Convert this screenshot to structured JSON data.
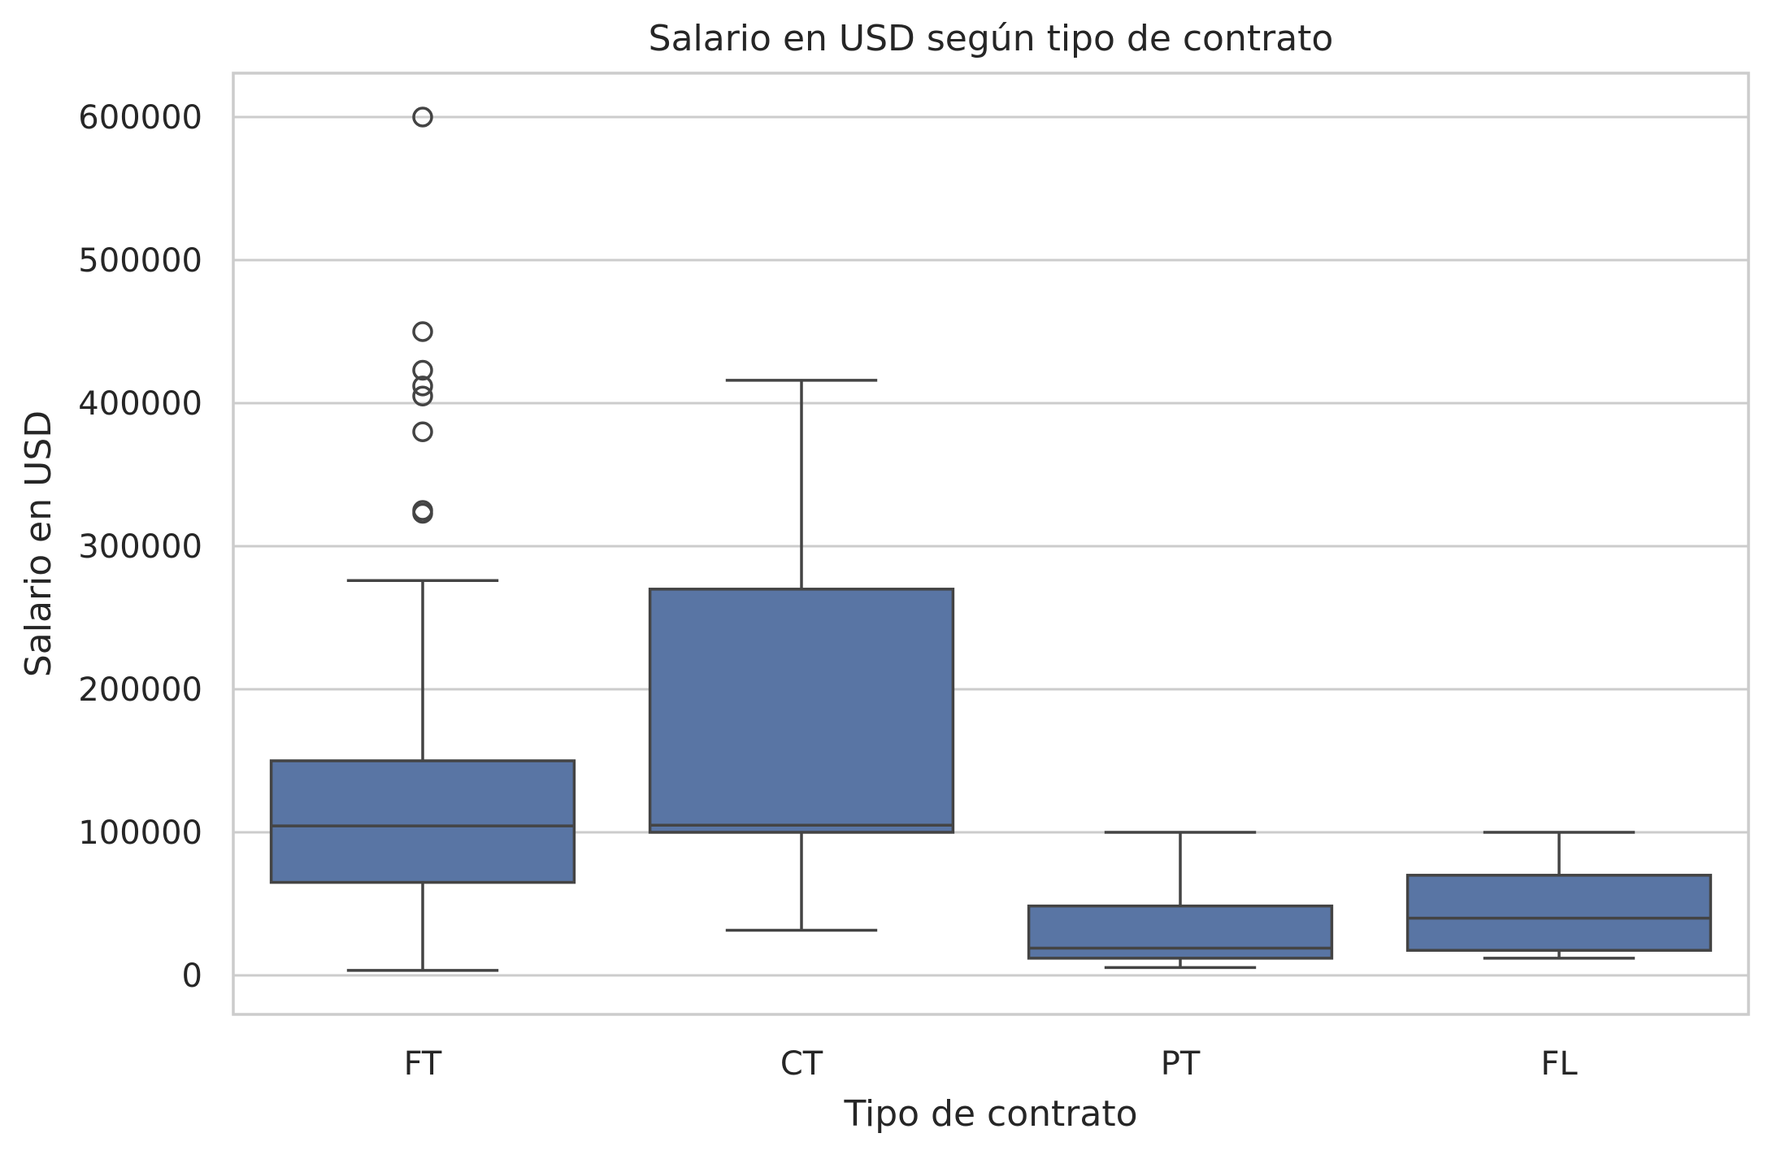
{
  "chart_data": {
    "type": "box",
    "title": "Salario en USD según tipo de contrato",
    "xlabel": "Tipo de contrato",
    "ylabel": "Salario en USD",
    "ylim": [
      -27000,
      630000
    ],
    "yticks": [
      0,
      100000,
      200000,
      300000,
      400000,
      500000,
      600000
    ],
    "grid": true,
    "categories": [
      "FT",
      "CT",
      "PT",
      "FL"
    ],
    "color": "#5975a4",
    "line_color": "#444444",
    "boxes": [
      {
        "category": "FT",
        "whisker_low": 3500,
        "q1": 65000,
        "median": 104500,
        "q3": 150000,
        "whisker_high": 276000,
        "fliers": [
          600000,
          450000,
          423000,
          412000,
          405000,
          380000,
          325000,
          323000
        ]
      },
      {
        "category": "CT",
        "whisker_low": 31500,
        "q1": 100000,
        "median": 105000,
        "q3": 270000,
        "whisker_high": 416000,
        "fliers": []
      },
      {
        "category": "PT",
        "whisker_low": 5500,
        "q1": 12000,
        "median": 19000,
        "q3": 48500,
        "whisker_high": 100000,
        "fliers": []
      },
      {
        "category": "FL",
        "whisker_low": 12000,
        "q1": 17500,
        "median": 40000,
        "q3": 70000,
        "whisker_high": 100000,
        "fliers": []
      }
    ]
  }
}
